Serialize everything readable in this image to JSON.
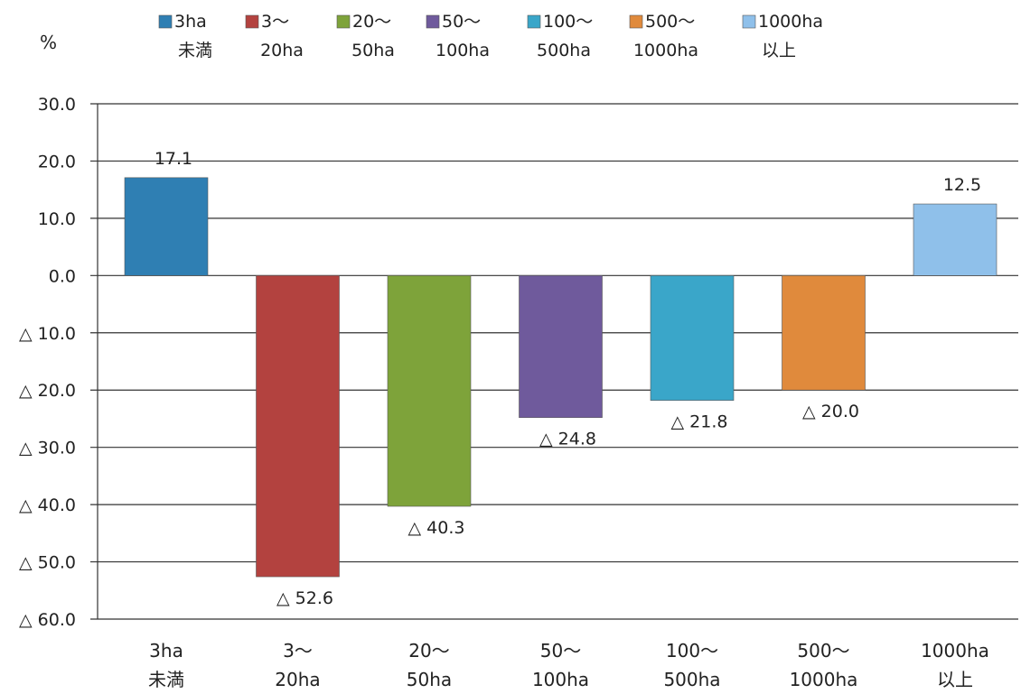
{
  "chart_data": {
    "type": "bar",
    "unit_label": "%",
    "categories": [
      {
        "line1": "3ha",
        "line2": "未満"
      },
      {
        "line1": "3～",
        "line2": "20ha"
      },
      {
        "line1": "20～",
        "line2": "50ha"
      },
      {
        "line1": "50～",
        "line2": "100ha"
      },
      {
        "line1": "100～",
        "line2": "500ha"
      },
      {
        "line1": "500～",
        "line2": "1000ha"
      },
      {
        "line1": "1000ha",
        "line2": "以上"
      }
    ],
    "values": [
      17.1,
      -52.6,
      -40.3,
      -24.8,
      -21.8,
      -20.0,
      12.5
    ],
    "data_labels": [
      "17.1",
      "△ 52.6",
      "△ 40.3",
      "△ 24.8",
      "△ 21.8",
      "△ 20.0",
      "12.5"
    ],
    "colors": [
      "#2f7fb3",
      "#b3423f",
      "#7ea33a",
      "#6f5a9c",
      "#3aa6c9",
      "#e08a3c",
      "#8fc0ea"
    ],
    "ylim": [
      -60,
      30
    ],
    "yticks": [
      30,
      20,
      10,
      0,
      -10,
      -20,
      -30,
      -40,
      -50,
      -60
    ],
    "ytick_labels": [
      "30.0",
      "20.0",
      "10.0",
      "0.0",
      "△ 10.0",
      "△ 20.0",
      "△ 30.0",
      "△ 40.0",
      "△ 50.0",
      "△ 60.0"
    ],
    "grid": true,
    "legend_position": "top"
  }
}
